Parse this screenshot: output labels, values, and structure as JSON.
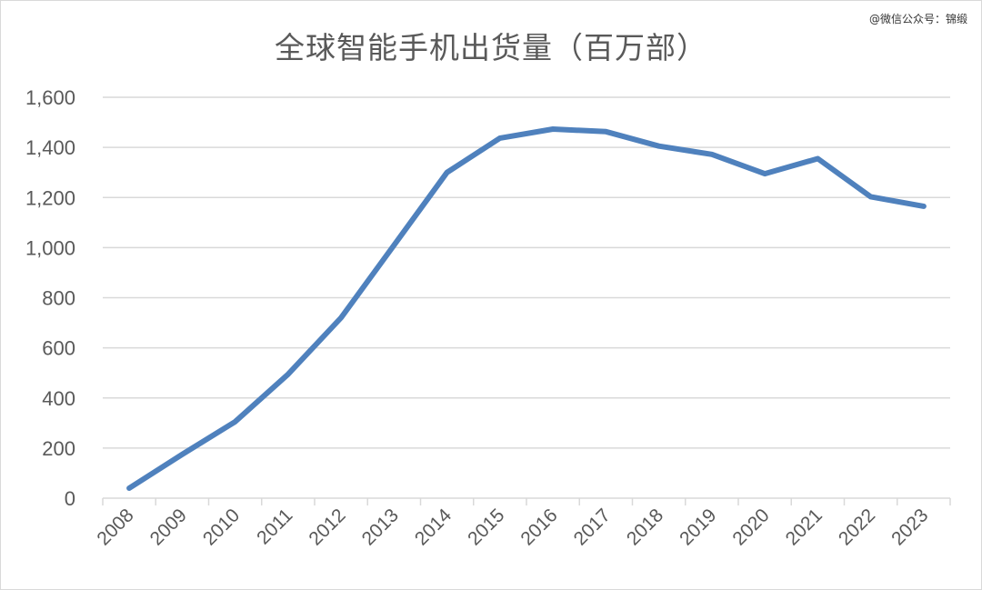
{
  "watermark": "@微信公众号：锦缎",
  "chart_data": {
    "type": "line",
    "title": "全球智能手机出货量（百万部）",
    "xlabel": "",
    "ylabel": "",
    "categories": [
      "2008",
      "2009",
      "2010",
      "2011",
      "2012",
      "2013",
      "2014",
      "2015",
      "2016",
      "2017",
      "2018",
      "2019",
      "2020",
      "2021",
      "2022",
      "2023"
    ],
    "series": [
      {
        "values": [
          40,
          175,
          305,
          495,
          720,
          1010,
          1300,
          1437,
          1473,
          1463,
          1405,
          1372,
          1295,
          1355,
          1203,
          1165
        ]
      }
    ],
    "ylim": [
      0,
      1600
    ],
    "yticks": [
      0,
      200,
      400,
      600,
      800,
      1000,
      1200,
      1400,
      1600
    ],
    "ytick_labels": [
      "0",
      "200",
      "400",
      "600",
      "800",
      "1,000",
      "1,200",
      "1,400",
      "1,600"
    ],
    "grid": true,
    "legend": "none",
    "colors": {
      "line": "#4f81bd",
      "grid": "#d9d9d9",
      "text": "#595959"
    }
  }
}
